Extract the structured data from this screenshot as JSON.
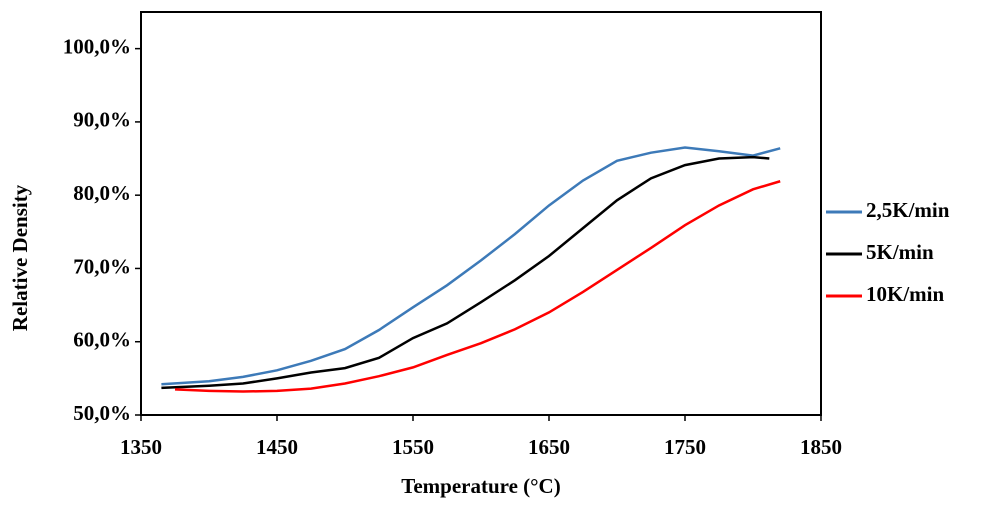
{
  "chart_data": {
    "type": "line",
    "x_label": "Temperature (°C)",
    "y_label": "Relative Density",
    "xlim": [
      1350,
      1850
    ],
    "xticks": [
      1350,
      1450,
      1550,
      1650,
      1750,
      1850
    ],
    "ylim": [
      50,
      105
    ],
    "yticks": [
      {
        "value": 50,
        "label": "50,0%"
      },
      {
        "value": 60,
        "label": "60,0%"
      },
      {
        "value": 70,
        "label": "70,0%"
      },
      {
        "value": 80,
        "label": "80,0%"
      },
      {
        "value": 90,
        "label": "90,0%"
      },
      {
        "value": 100,
        "label": "100,0%"
      }
    ],
    "grid": false,
    "legend": "right",
    "series": [
      {
        "name": "2,5K/min",
        "color": "#3d7ab8",
        "x": [
          1365,
          1400,
          1425,
          1450,
          1475,
          1500,
          1525,
          1550,
          1575,
          1600,
          1625,
          1650,
          1675,
          1700,
          1725,
          1750,
          1775,
          1800,
          1820
        ],
        "values": [
          54.2,
          54.6,
          55.2,
          56.1,
          57.4,
          59.0,
          61.6,
          64.7,
          67.7,
          71.1,
          74.7,
          78.6,
          82.0,
          84.7,
          85.8,
          86.5,
          86.0,
          85.4,
          86.4
        ]
      },
      {
        "name": "5K/min",
        "color": "#000000",
        "x": [
          1365,
          1400,
          1425,
          1450,
          1475,
          1500,
          1525,
          1550,
          1575,
          1600,
          1625,
          1650,
          1675,
          1700,
          1725,
          1750,
          1775,
          1800,
          1812
        ],
        "values": [
          53.7,
          54.0,
          54.3,
          55.0,
          55.8,
          56.4,
          57.8,
          60.5,
          62.5,
          65.4,
          68.4,
          71.7,
          75.5,
          79.3,
          82.3,
          84.1,
          85.0,
          85.2,
          85.0
        ]
      },
      {
        "name": "10K/min",
        "color": "#ff0000",
        "x": [
          1375,
          1400,
          1425,
          1450,
          1475,
          1500,
          1525,
          1550,
          1575,
          1600,
          1625,
          1650,
          1675,
          1700,
          1725,
          1750,
          1775,
          1800,
          1820
        ],
        "values": [
          53.5,
          53.3,
          53.2,
          53.3,
          53.6,
          54.3,
          55.3,
          56.5,
          58.2,
          59.8,
          61.7,
          64.0,
          66.8,
          69.8,
          72.8,
          75.9,
          78.6,
          80.8,
          81.9
        ]
      }
    ]
  }
}
